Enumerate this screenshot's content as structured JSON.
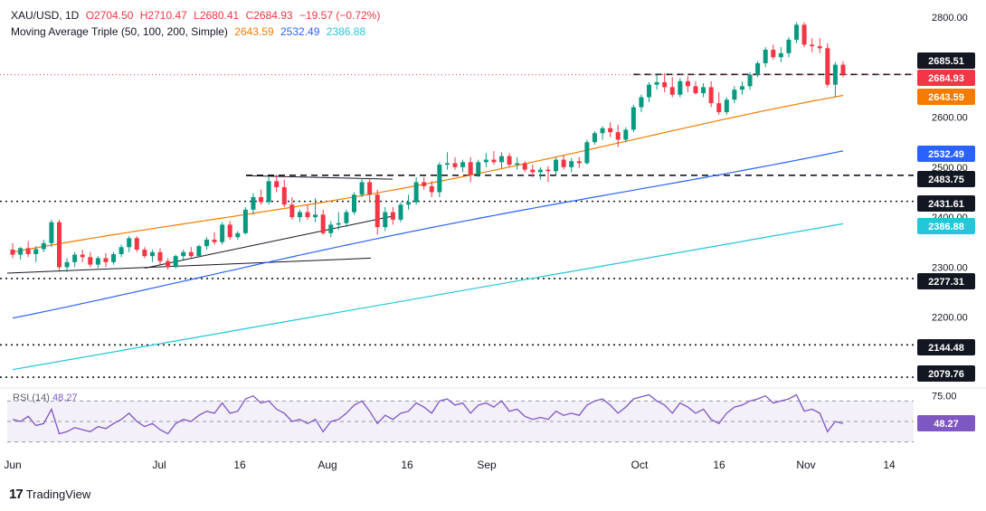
{
  "header": {
    "symbol": "XAU/USD, 1D",
    "open": "O2704.50",
    "high": "H2710.47",
    "low": "L2680.41",
    "close": "C2684.93",
    "change": "−19.57 (−0.72%)",
    "ma_label": "Moving Average Triple (50, 100, 200, Simple)",
    "ma50": "2643.59",
    "ma100": "2532.49",
    "ma200": "2386.88",
    "rsi_label": "RSI (14)",
    "rsi_value": "48.27"
  },
  "brand": {
    "name": "TradingView"
  },
  "colors": {
    "up": "#089981",
    "down": "#f23645",
    "ma50": "#f57c00",
    "ma100": "#2962ff",
    "ma200": "#26c6da",
    "rsi": "#7e57c2"
  },
  "chart_data": {
    "type": "candlestick",
    "y_ticks": [
      "2800.00",
      "2600.00",
      "2500.00",
      "2400.00",
      "2300.00",
      "2200.00"
    ],
    "x_ticks": [
      "Jun",
      "Jul",
      "16",
      "Aug",
      "16",
      "Sep",
      "Oct",
      "16",
      "Nov",
      "14"
    ],
    "price_labels": [
      {
        "value": "2685.51",
        "kind": "dark"
      },
      {
        "value": "2684.93",
        "kind": "red"
      },
      {
        "value": "2643.59",
        "kind": "orange"
      },
      {
        "value": "2532.49",
        "kind": "blue"
      },
      {
        "value": "2483.75",
        "kind": "dark"
      },
      {
        "value": "2431.61",
        "kind": "dark"
      },
      {
        "value": "2386.88",
        "kind": "cyan"
      },
      {
        "value": "2277.31",
        "kind": "dark"
      },
      {
        "value": "2144.48",
        "kind": "dark"
      },
      {
        "value": "2079.76",
        "kind": "dark"
      }
    ],
    "horizontal_levels": [
      2685.51,
      2483.75,
      2431.61,
      2277.31,
      2144.48,
      2079.76
    ],
    "current_price": 2684.93,
    "candles": [
      [
        2335,
        2348,
        2318,
        2325
      ],
      [
        2325,
        2340,
        2315,
        2338
      ],
      [
        2338,
        2352,
        2320,
        2326
      ],
      [
        2326,
        2342,
        2310,
        2336
      ],
      [
        2336,
        2355,
        2330,
        2348
      ],
      [
        2348,
        2395,
        2340,
        2390
      ],
      [
        2390,
        2395,
        2290,
        2300
      ],
      [
        2300,
        2318,
        2290,
        2310
      ],
      [
        2310,
        2330,
        2300,
        2325
      ],
      [
        2325,
        2335,
        2310,
        2320
      ],
      [
        2320,
        2330,
        2300,
        2305
      ],
      [
        2305,
        2322,
        2298,
        2318
      ],
      [
        2318,
        2328,
        2300,
        2310
      ],
      [
        2310,
        2330,
        2305,
        2326
      ],
      [
        2326,
        2345,
        2320,
        2340
      ],
      [
        2340,
        2362,
        2330,
        2358
      ],
      [
        2358,
        2362,
        2330,
        2335
      ],
      [
        2335,
        2340,
        2318,
        2322
      ],
      [
        2322,
        2335,
        2310,
        2330
      ],
      [
        2330,
        2338,
        2305,
        2312
      ],
      [
        2312,
        2318,
        2295,
        2300
      ],
      [
        2300,
        2325,
        2298,
        2322
      ],
      [
        2322,
        2335,
        2315,
        2330
      ],
      [
        2330,
        2340,
        2318,
        2322
      ],
      [
        2322,
        2345,
        2320,
        2342
      ],
      [
        2342,
        2360,
        2335,
        2355
      ],
      [
        2355,
        2370,
        2345,
        2350
      ],
      [
        2350,
        2390,
        2345,
        2385
      ],
      [
        2385,
        2392,
        2355,
        2360
      ],
      [
        2360,
        2372,
        2355,
        2368
      ],
      [
        2368,
        2420,
        2365,
        2415
      ],
      [
        2415,
        2448,
        2405,
        2440
      ],
      [
        2440,
        2455,
        2425,
        2430
      ],
      [
        2430,
        2480,
        2425,
        2472
      ],
      [
        2472,
        2485,
        2450,
        2460
      ],
      [
        2460,
        2475,
        2420,
        2425
      ],
      [
        2425,
        2440,
        2395,
        2400
      ],
      [
        2400,
        2415,
        2390,
        2410
      ],
      [
        2410,
        2425,
        2395,
        2400
      ],
      [
        2400,
        2438,
        2390,
        2405
      ],
      [
        2405,
        2415,
        2365,
        2368
      ],
      [
        2368,
        2392,
        2360,
        2385
      ],
      [
        2385,
        2410,
        2375,
        2388
      ],
      [
        2388,
        2415,
        2380,
        2410
      ],
      [
        2410,
        2450,
        2405,
        2445
      ],
      [
        2445,
        2478,
        2440,
        2470
      ],
      [
        2470,
        2477,
        2430,
        2445
      ],
      [
        2445,
        2455,
        2365,
        2380
      ],
      [
        2380,
        2420,
        2372,
        2410
      ],
      [
        2410,
        2420,
        2385,
        2395
      ],
      [
        2395,
        2430,
        2390,
        2425
      ],
      [
        2425,
        2445,
        2415,
        2430
      ],
      [
        2430,
        2480,
        2425,
        2470
      ],
      [
        2470,
        2480,
        2455,
        2462
      ],
      [
        2462,
        2472,
        2440,
        2450
      ],
      [
        2450,
        2510,
        2440,
        2505
      ],
      [
        2505,
        2530,
        2495,
        2508
      ],
      [
        2508,
        2520,
        2495,
        2500
      ],
      [
        2500,
        2515,
        2490,
        2510
      ],
      [
        2510,
        2520,
        2470,
        2485
      ],
      [
        2485,
        2515,
        2480,
        2510
      ],
      [
        2510,
        2528,
        2500,
        2515
      ],
      [
        2515,
        2532,
        2505,
        2510
      ],
      [
        2510,
        2530,
        2498,
        2522
      ],
      [
        2522,
        2528,
        2500,
        2505
      ],
      [
        2505,
        2520,
        2495,
        2508
      ],
      [
        2508,
        2512,
        2490,
        2495
      ],
      [
        2495,
        2505,
        2480,
        2490
      ],
      [
        2490,
        2500,
        2475,
        2495
      ],
      [
        2495,
        2502,
        2470,
        2492
      ],
      [
        2492,
        2520,
        2485,
        2515
      ],
      [
        2515,
        2525,
        2495,
        2500
      ],
      [
        2500,
        2518,
        2490,
        2512
      ],
      [
        2512,
        2520,
        2498,
        2508
      ],
      [
        2508,
        2555,
        2505,
        2550
      ],
      [
        2550,
        2572,
        2545,
        2568
      ],
      [
        2568,
        2582,
        2555,
        2578
      ],
      [
        2578,
        2590,
        2560,
        2570
      ],
      [
        2570,
        2585,
        2540,
        2555
      ],
      [
        2555,
        2580,
        2550,
        2575
      ],
      [
        2575,
        2625,
        2570,
        2620
      ],
      [
        2620,
        2645,
        2610,
        2640
      ],
      [
        2640,
        2670,
        2630,
        2665
      ],
      [
        2665,
        2685,
        2655,
        2670
      ],
      [
        2670,
        2688,
        2650,
        2660
      ],
      [
        2660,
        2680,
        2640,
        2645
      ],
      [
        2645,
        2678,
        2640,
        2672
      ],
      [
        2672,
        2682,
        2650,
        2662
      ],
      [
        2662,
        2672,
        2645,
        2648
      ],
      [
        2648,
        2668,
        2640,
        2660
      ],
      [
        2660,
        2672,
        2620,
        2628
      ],
      [
        2628,
        2650,
        2605,
        2610
      ],
      [
        2610,
        2640,
        2605,
        2635
      ],
      [
        2635,
        2662,
        2628,
        2655
      ],
      [
        2655,
        2672,
        2645,
        2662
      ],
      [
        2662,
        2690,
        2655,
        2685
      ],
      [
        2685,
        2712,
        2680,
        2708
      ],
      [
        2708,
        2740,
        2700,
        2735
      ],
      [
        2735,
        2745,
        2715,
        2720
      ],
      [
        2720,
        2740,
        2710,
        2728
      ],
      [
        2728,
        2760,
        2720,
        2755
      ],
      [
        2755,
        2790,
        2748,
        2785
      ],
      [
        2785,
        2790,
        2740,
        2745
      ],
      [
        2745,
        2758,
        2730,
        2742
      ],
      [
        2742,
        2758,
        2728,
        2738
      ],
      [
        2738,
        2748,
        2660,
        2665
      ],
      [
        2665,
        2710,
        2640,
        2705
      ],
      [
        2705,
        2712,
        2680,
        2685
      ]
    ],
    "ma50": {
      "start": 2330,
      "end": 2643.59
    },
    "ma100": {
      "start": 2198,
      "end": 2532.49
    },
    "ma200": {
      "start": 2095,
      "end": 2386.88
    },
    "rsi": {
      "levels": [
        70,
        50,
        30
      ],
      "axis_labels": [
        "75.00",
        "48.27"
      ],
      "last": 48.27,
      "values": [
        52,
        50,
        55,
        46,
        48,
        62,
        38,
        40,
        44,
        42,
        40,
        45,
        43,
        48,
        52,
        58,
        50,
        45,
        48,
        42,
        38,
        48,
        52,
        50,
        56,
        60,
        58,
        68,
        58,
        60,
        72,
        75,
        68,
        70,
        62,
        58,
        50,
        52,
        48,
        52,
        40,
        50,
        52,
        58,
        66,
        70,
        60,
        48,
        56,
        52,
        58,
        60,
        68,
        64,
        58,
        70,
        72,
        66,
        68,
        58,
        66,
        68,
        64,
        70,
        60,
        62,
        55,
        52,
        54,
        52,
        60,
        56,
        58,
        56,
        66,
        70,
        72,
        66,
        58,
        64,
        72,
        74,
        76,
        70,
        66,
        58,
        68,
        64,
        58,
        62,
        52,
        48,
        58,
        64,
        66,
        70,
        72,
        75,
        68,
        70,
        72,
        76,
        60,
        62,
        58,
        40,
        50,
        48
      ]
    }
  }
}
